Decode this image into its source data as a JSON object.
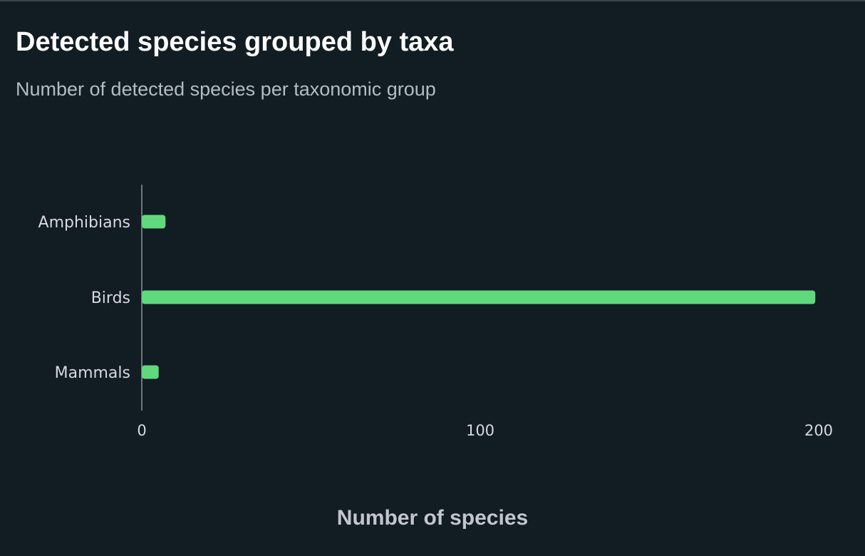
{
  "chart_data": {
    "type": "bar",
    "orientation": "horizontal",
    "title": "Detected species grouped by taxa",
    "subtitle": "Number of detected species per taxonomic group",
    "xlabel": "Number of species",
    "ylabel": "",
    "categories": [
      "Amphibians",
      "Birds",
      "Mammals"
    ],
    "values": [
      7,
      199,
      5
    ],
    "xlim": [
      0,
      200
    ],
    "x_ticks": [
      "0",
      "100",
      "200"
    ],
    "grid": false,
    "legend": "none",
    "colors": {
      "bar": "#5fd97b",
      "background": "#121c23",
      "axis": "#8a939b",
      "tick_text": "#d6dade"
    }
  }
}
